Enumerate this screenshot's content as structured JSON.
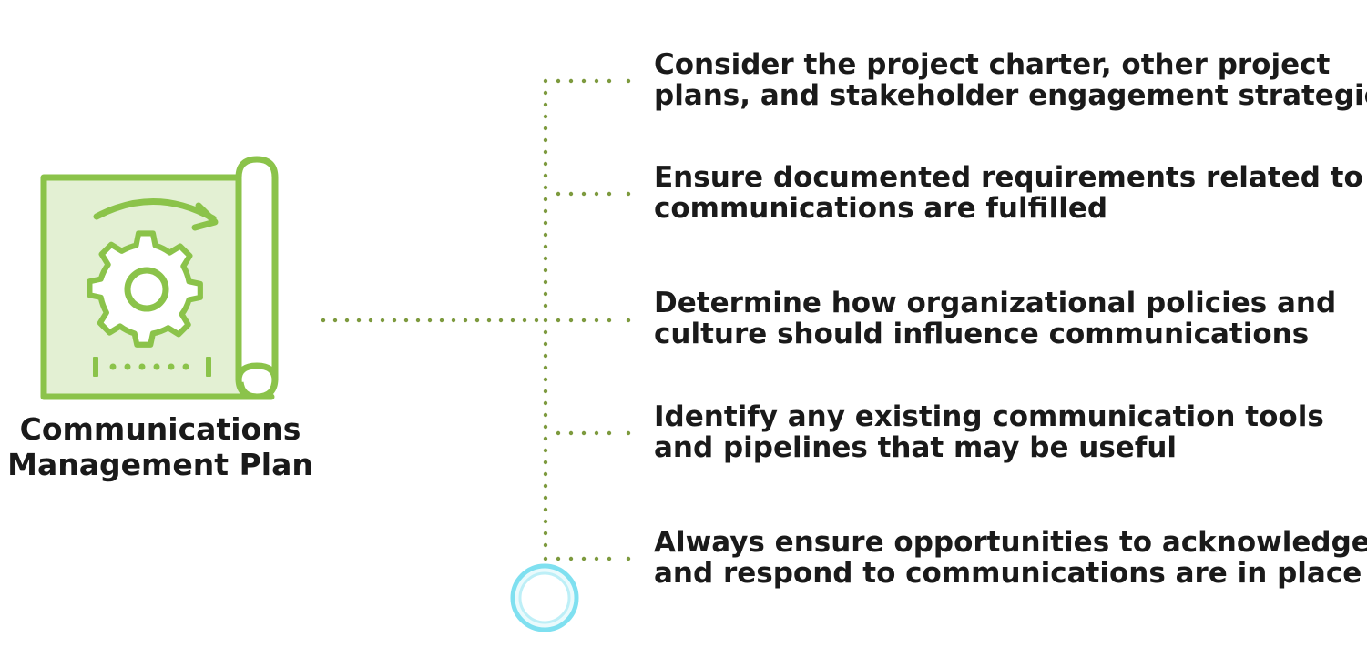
{
  "diagram": {
    "title_lines": [
      "Communications",
      "Management Plan"
    ],
    "items": [
      {
        "lines": [
          "Consider the project charter, other project",
          "plans, and stakeholder engagement strategies"
        ]
      },
      {
        "lines": [
          "Ensure documented requirements related to",
          "communications are fulfilled"
        ]
      },
      {
        "lines": [
          "Determine how organizational policies and",
          "culture should influence communications"
        ]
      },
      {
        "lines": [
          "Identify any existing communication tools",
          "and pipelines that may be useful"
        ]
      },
      {
        "lines": [
          "Always ensure opportunities to acknowledge",
          "and respond to communications are in place"
        ]
      }
    ],
    "colors": {
      "icon_stroke": "#8bc34a",
      "icon_fill": "#e3f0d3",
      "connector": "#7d9a3e",
      "cursor_ring": "#7fe0f0",
      "text": "#1a1a1a"
    },
    "icons": {
      "main": "blueprint-gear-icon",
      "cursor": "cursor-ring-icon"
    }
  }
}
